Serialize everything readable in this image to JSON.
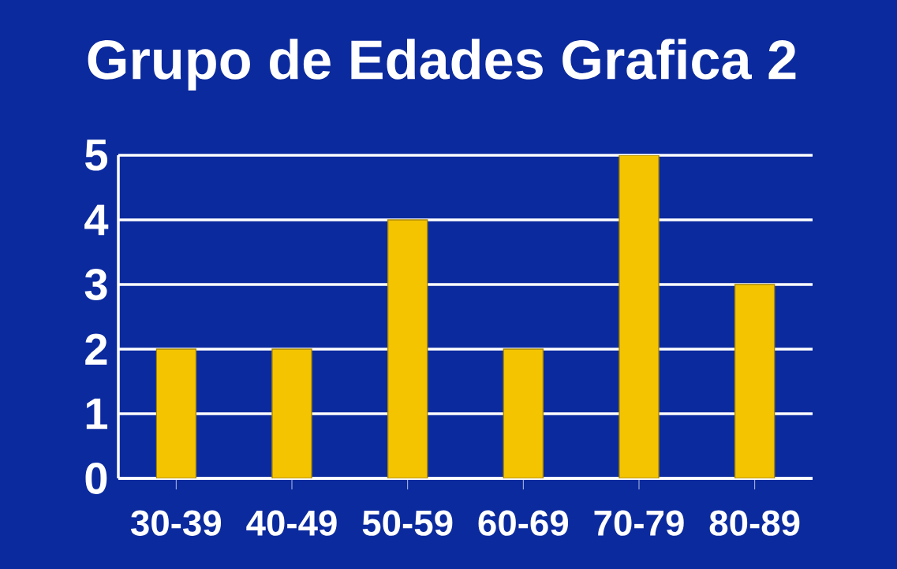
{
  "chart_data": {
    "type": "bar",
    "title": "Grupo de Edades Grafica 2",
    "categories": [
      "30-39",
      "40-49",
      "50-59",
      "60-69",
      "70-79",
      "80-89"
    ],
    "values": [
      2,
      2,
      4,
      2,
      5,
      3
    ],
    "color": "#f5c400",
    "ylim": [
      0,
      5
    ],
    "yticks": [
      0,
      1,
      2,
      3,
      4,
      5
    ],
    "grid": "y"
  }
}
